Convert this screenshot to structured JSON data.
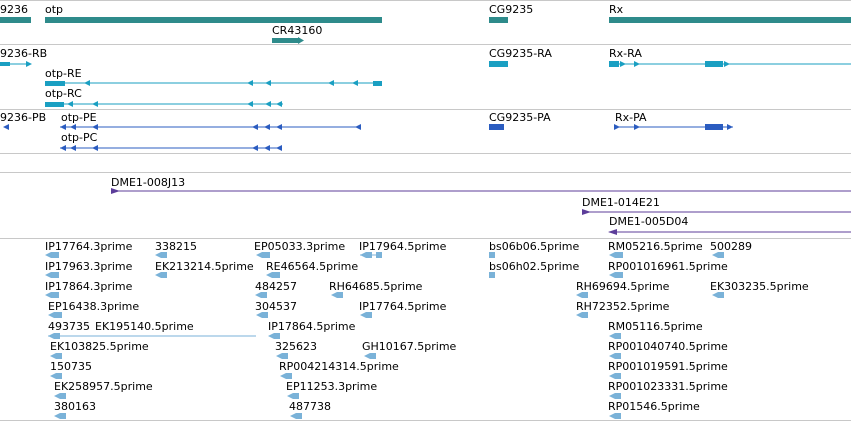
{
  "colors": {
    "gene": "#2e8b8b",
    "transcript": "#1a9fc2",
    "protein": "#2b5cc0",
    "clone": "#5c3d9a",
    "est": "#7ab2d8",
    "separator": "#c8c8c8"
  },
  "tracks": {
    "genes": [
      "9236",
      "otp",
      "CR43160",
      "CG9235",
      "Rx"
    ],
    "transcripts": [
      "9236-RB",
      "otp-RE",
      "otp-RC",
      "CG9235-RA",
      "Rx-RA"
    ],
    "proteins": [
      "9236-PB",
      "otp-PE",
      "otp-PC",
      "CG9235-PA",
      "Rx-PA"
    ],
    "clones": [
      "DME1-008J13",
      "DME1-014E21",
      "DME1-005D04"
    ],
    "ests": [
      "IP17764.3prime",
      "338215",
      "EP05033.3prime",
      "IP17964.5prime",
      "bs06b06.5prime",
      "RM05216.5prime",
      "500289",
      "IP17963.3prime",
      "EK213214.5prime",
      "RE46564.5prime",
      "bs06h02.5prime",
      "RP001016961.5prime",
      "IP17864.3prime",
      "484257",
      "RH64685.5prime",
      "RH69694.5prime",
      "EK303235.5prime",
      "EP16438.3prime",
      "304537",
      "IP17764.5prime",
      "RH72352.5prime",
      "493735",
      "EK195140.5prime",
      "IP17864.5prime",
      "RM05116.5prime",
      "EK103825.5prime",
      "325623",
      "GH10167.5prime",
      "RP001040740.5prime",
      "150735",
      "RP004214314.5prime",
      "RP001019591.5prime",
      "EK258957.5prime",
      "EP11253.3prime",
      "RP001023331.5prime",
      "380163",
      "487738",
      "RP01546.5prime"
    ]
  }
}
